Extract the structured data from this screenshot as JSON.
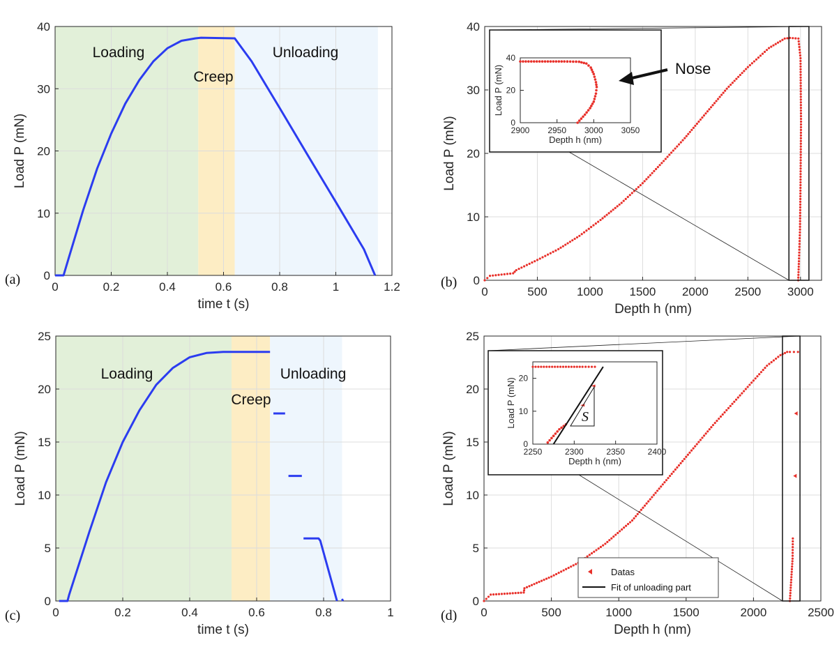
{
  "chart_data": [
    {
      "panel": "(a)",
      "type": "line",
      "xlabel": "time t (s)",
      "ylabel": "Load P (mN)",
      "xlim": [
        0,
        1.2
      ],
      "ylim": [
        0,
        40
      ],
      "xticks": [
        "0",
        "0.2",
        "0.4",
        "0.6",
        "0.8",
        "1",
        "1.2"
      ],
      "yticks": [
        "0",
        "10",
        "20",
        "30",
        "40"
      ],
      "grid": true,
      "regions": [
        {
          "name": "Loading",
          "x": [
            0,
            0.51
          ],
          "color": "#e2f0d9"
        },
        {
          "name": "Creep",
          "x": [
            0.51,
            0.64
          ],
          "color": "#fdedc4"
        },
        {
          "name": "Unloading",
          "x": [
            0.64,
            1.15
          ],
          "color": "#eef6fd"
        }
      ],
      "series": [
        {
          "color": "#2b3cf0",
          "x": [
            0,
            0.03,
            0.05,
            0.1,
            0.15,
            0.2,
            0.25,
            0.3,
            0.35,
            0.4,
            0.45,
            0.5,
            0.52,
            0.64,
            0.7,
            0.8,
            0.9,
            1.0,
            1.1,
            1.14
          ],
          "y": [
            0,
            0,
            3,
            10.5,
            17.2,
            22.8,
            27.6,
            31.4,
            34.4,
            36.5,
            37.7,
            38.1,
            38.2,
            38.1,
            34.4,
            26.9,
            19.3,
            11.8,
            4.2,
            0
          ]
        }
      ]
    },
    {
      "panel": "(b)",
      "type": "scatter",
      "xlabel": "Depth h (nm)",
      "ylabel": "Load P (mN)",
      "xlim": [
        0,
        3200
      ],
      "ylim": [
        0,
        40
      ],
      "xticks": [
        "0",
        "500",
        "1000",
        "1500",
        "2000",
        "2500",
        "3000"
      ],
      "yticks": [
        "0",
        "10",
        "20",
        "30",
        "40"
      ],
      "grid": true,
      "annotation": "Nose",
      "series": [
        {
          "color": "#e8302a",
          "x": [
            0,
            50,
            270,
            300,
            500,
            700,
            900,
            1100,
            1300,
            1500,
            1700,
            1900,
            2100,
            2300,
            2500,
            2700,
            2850,
            2900,
            2980,
            3000,
            3005,
            3000,
            2995,
            2985,
            2978
          ],
          "y": [
            0,
            0.7,
            1.1,
            1.6,
            3.2,
            4.9,
            7.0,
            9.5,
            12.2,
            15.3,
            18.8,
            22.4,
            26.3,
            30.2,
            33.6,
            36.6,
            38.1,
            38.2,
            38.1,
            35,
            25,
            15,
            8,
            3,
            0
          ]
        }
      ],
      "inset": {
        "xlabel": "Depth h (nm)",
        "ylabel": "Load P (mN)",
        "xlim": [
          2900,
          3050
        ],
        "ylim": [
          0,
          40
        ],
        "xticks": [
          "2900",
          "2950",
          "3000",
          "3050"
        ],
        "yticks": [
          "0",
          "20",
          "40"
        ],
        "x": [
          2900,
          2930,
          2960,
          2980,
          2990,
          2996,
          3000,
          3003,
          3004,
          3003,
          3000,
          2995,
          2988,
          2983,
          2978
        ],
        "y": [
          37.8,
          37.8,
          37.8,
          37.6,
          36.5,
          34,
          30,
          25,
          22,
          18,
          13,
          9,
          5,
          2.5,
          0
        ]
      }
    },
    {
      "panel": "(c)",
      "type": "line",
      "xlabel": "time t (s)",
      "ylabel": "Load P (mN)",
      "xlim": [
        0,
        1
      ],
      "ylim": [
        0,
        25
      ],
      "xticks": [
        "0",
        "0.2",
        "0.4",
        "0.6",
        "0.8",
        "1"
      ],
      "yticks": [
        "0",
        "5",
        "10",
        "15",
        "20",
        "25"
      ],
      "grid": true,
      "regions": [
        {
          "name": "Loading",
          "x": [
            0,
            0.525
          ],
          "color": "#e2f0d9"
        },
        {
          "name": "Creep",
          "x": [
            0.525,
            0.64
          ],
          "color": "#fdedc4"
        },
        {
          "name": "Unloading",
          "x": [
            0.64,
            0.855
          ],
          "color": "#eef6fd"
        }
      ],
      "series": [
        {
          "color": "#2b3cf0",
          "x": [
            0.01,
            0.035,
            0.04,
            0.1,
            0.15,
            0.2,
            0.25,
            0.3,
            0.35,
            0.4,
            0.45,
            0.5,
            0.525,
            0.64
          ],
          "y": [
            0,
            0,
            0.6,
            6.5,
            11.2,
            15.0,
            18.0,
            20.4,
            22.0,
            23.0,
            23.4,
            23.5,
            23.5,
            23.5
          ]
        },
        {
          "color": "#2b3cf0",
          "x": [
            0.65,
            0.685
          ],
          "y": [
            17.7,
            17.7
          ]
        },
        {
          "color": "#2b3cf0",
          "x": [
            0.695,
            0.735
          ],
          "y": [
            11.8,
            11.8
          ]
        },
        {
          "color": "#2b3cf0",
          "x": [
            0.74,
            0.785,
            0.79,
            0.84
          ],
          "y": [
            5.9,
            5.9,
            5.7,
            0
          ]
        },
        {
          "color": "#2b3cf0",
          "x": [
            0.855,
            0.858
          ],
          "y": [
            0.2,
            0
          ]
        }
      ]
    },
    {
      "panel": "(d)",
      "type": "scatter",
      "xlabel": "Depth h (nm)",
      "ylabel": "Load P (mN)",
      "xlim": [
        0,
        2500
      ],
      "ylim": [
        0,
        25
      ],
      "xticks": [
        "0",
        "500",
        "1000",
        "1500",
        "2000",
        "2500"
      ],
      "yticks": [
        "0",
        "5",
        "10",
        "15",
        "20",
        "25"
      ],
      "grid": true,
      "legend": {
        "placement": "bottom-center",
        "entries": [
          "Datas",
          "Fit of unloading part"
        ]
      },
      "series": [
        {
          "name": "Datas",
          "color": "#e8302a",
          "x": [
            0,
            50,
            295,
            300,
            500,
            700,
            900,
            1100,
            1300,
            1500,
            1700,
            1900,
            2100,
            2200,
            2250,
            2270,
            2300,
            2330
          ],
          "y": [
            0,
            0.6,
            0.8,
            1.2,
            2.3,
            3.6,
            5.4,
            7.6,
            10.6,
            13.6,
            16.6,
            19.4,
            22.2,
            23.2,
            23.5,
            23.5,
            23.5,
            23.5
          ]
        },
        {
          "name": "Datas",
          "color": "#e8302a",
          "x": [
            2317
          ],
          "y": [
            17.7
          ]
        },
        {
          "name": "Datas",
          "color": "#e8302a",
          "x": [
            2310
          ],
          "y": [
            11.8
          ]
        },
        {
          "name": "Datas",
          "color": "#e8302a",
          "x": [
            2270,
            2280,
            2290,
            2292
          ],
          "y": [
            0,
            2,
            4,
            5.9
          ]
        }
      ],
      "inset": {
        "xlabel": "Depth h (nm)",
        "ylabel": "Load P (mN)",
        "xlim": [
          2250,
          2400
        ],
        "ylim": [
          0,
          25
        ],
        "xticks": [
          "2250",
          "2300",
          "2350",
          "2400"
        ],
        "yticks": [
          "0",
          "10",
          "20"
        ],
        "annotation": "S",
        "data_x": [
          2250,
          2270,
          2290,
          2310,
          2325,
          2268,
          2275,
          2282,
          2290,
          2310,
          2323
        ],
        "data_y": [
          23.5,
          23.5,
          23.5,
          23.5,
          23.5,
          0.5,
          2.5,
          4.5,
          6.0,
          11.8,
          17.7
        ],
        "fit_x": [
          2275,
          2335
        ],
        "fit_y": [
          0,
          23.5
        ]
      }
    }
  ]
}
